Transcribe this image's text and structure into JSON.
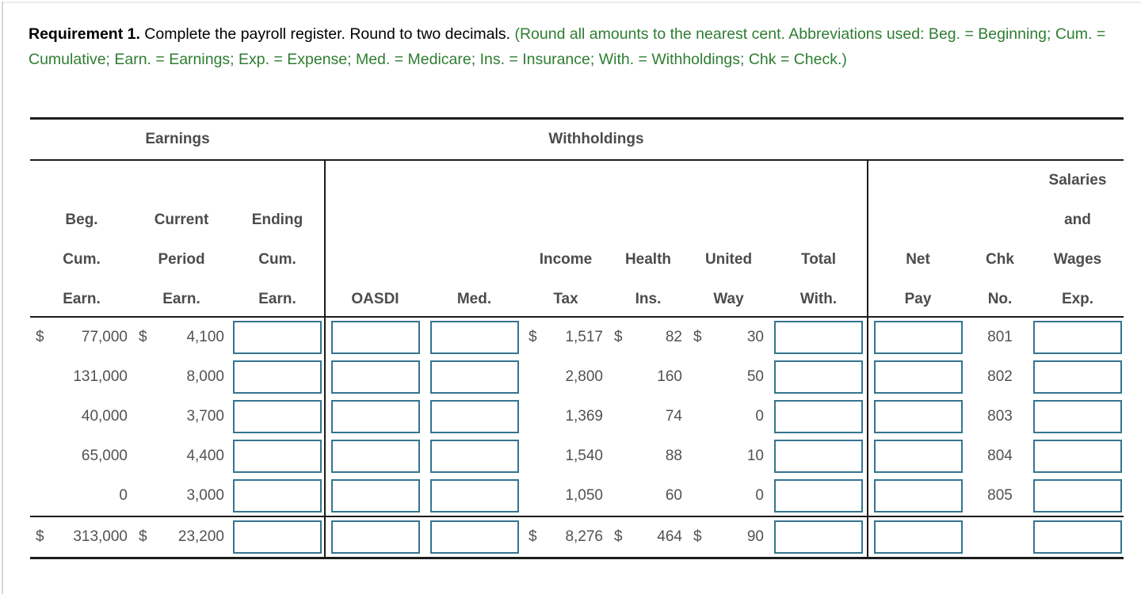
{
  "colors": {
    "green": "#2e7d32",
    "input_border": "#35748f",
    "table_rule": "#1c1c1c",
    "table_text": "#525252"
  },
  "instructions": {
    "title": "Requirement 1.",
    "body": "Complete the payroll register. Round to two decimals.",
    "note": "(Round all amounts to the nearest cent. Abbreviations used: Beg. = Beginning; Cum. = Cumulative; Earn. = Earnings; Exp. = Expense; Med. = Medicare; Ins. = Insurance; With. = Withholdings; Chk = Check.)"
  },
  "table": {
    "group_headers": {
      "earnings": "Earnings",
      "withholdings": "Withholdings",
      "blank": ""
    },
    "columns": [
      {
        "lines": [
          "Beg.",
          "Cum.",
          "Earn."
        ]
      },
      {
        "lines": [
          "Current",
          "Period",
          "Earn."
        ]
      },
      {
        "lines": [
          "Ending",
          "Cum.",
          "Earn."
        ]
      },
      {
        "lines": [
          "OASDI"
        ]
      },
      {
        "lines": [
          "Med."
        ]
      },
      {
        "lines": [
          "Income",
          "Tax"
        ]
      },
      {
        "lines": [
          "Health",
          "Ins."
        ]
      },
      {
        "lines": [
          "United",
          "Way"
        ]
      },
      {
        "lines": [
          "Total",
          "With."
        ]
      },
      {
        "lines": [
          "Net",
          "Pay"
        ]
      },
      {
        "lines": [
          "Chk",
          "No."
        ]
      },
      {
        "lines": [
          "Salaries",
          "and",
          "Wages",
          "Exp."
        ]
      }
    ],
    "rows": [
      {
        "beg_d": "$",
        "beg": "77,000",
        "cur_d": "$",
        "cur": "4,100",
        "inc_d": "$",
        "inc": "1,517",
        "hi_d": "$",
        "hi": "82",
        "uw_d": "$",
        "uw": "30",
        "chk": "801"
      },
      {
        "beg_d": "",
        "beg": "131,000",
        "cur_d": "",
        "cur": "8,000",
        "inc_d": "",
        "inc": "2,800",
        "hi_d": "",
        "hi": "160",
        "uw_d": "",
        "uw": "50",
        "chk": "802"
      },
      {
        "beg_d": "",
        "beg": "40,000",
        "cur_d": "",
        "cur": "3,700",
        "inc_d": "",
        "inc": "1,369",
        "hi_d": "",
        "hi": "74",
        "uw_d": "",
        "uw": "0",
        "chk": "803"
      },
      {
        "beg_d": "",
        "beg": "65,000",
        "cur_d": "",
        "cur": "4,400",
        "inc_d": "",
        "inc": "1,540",
        "hi_d": "",
        "hi": "88",
        "uw_d": "",
        "uw": "10",
        "chk": "804"
      },
      {
        "beg_d": "",
        "beg": "0",
        "cur_d": "",
        "cur": "3,000",
        "inc_d": "",
        "inc": "1,050",
        "hi_d": "",
        "hi": "60",
        "uw_d": "",
        "uw": "0",
        "chk": "805"
      }
    ],
    "total": {
      "beg_d": "$",
      "beg": "313,000",
      "cur_d": "$",
      "cur": "23,200",
      "inc_d": "$",
      "inc": "8,276",
      "hi_d": "$",
      "hi": "464",
      "uw_d": "$",
      "uw": "90",
      "chk": ""
    }
  }
}
